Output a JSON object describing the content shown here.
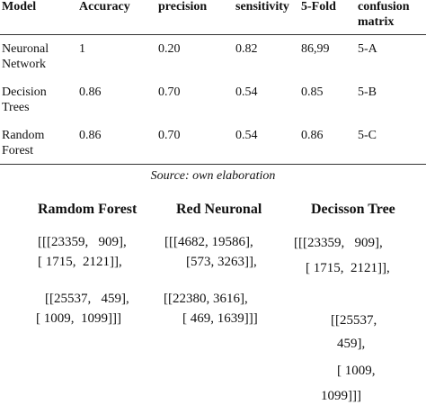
{
  "table": {
    "header": [
      "Model",
      "Accuracy",
      "precision",
      "sensitivity",
      "5-Fold",
      "confusion matrix"
    ],
    "rows": [
      [
        "Neuronal Network",
        "1",
        "0.20",
        "0.82",
        "86,99",
        "5-A"
      ],
      [
        "Decision Trees",
        "0.86",
        "0.70",
        "0.54",
        "0.85",
        "5-B"
      ],
      [
        "Random Forest",
        "0.86",
        "0.70",
        "0.54",
        "0.86",
        "5-C"
      ]
    ]
  },
  "caption": "Source: own elaboration",
  "matrices": [
    {
      "title": "Ramdom Forest",
      "lines": [
        "[[[23359,   909],",
        "[ 1715,  2121]],",
        "[[25537,   459],",
        "[ 1009,  1099]]]"
      ]
    },
    {
      "title": "Red Neuronal",
      "lines": [
        "[[[4682, 19586],",
        "[573, 3263]],",
        "[[22380, 3616],",
        "[ 469, 1639]]]"
      ]
    },
    {
      "title": "Decisson Tree",
      "lines": [
        "[[[23359,   909],",
        "[ 1715,  2121]],",
        "[[25537,",
        "459],",
        "[ 1009,",
        "1099]]]"
      ]
    }
  ]
}
